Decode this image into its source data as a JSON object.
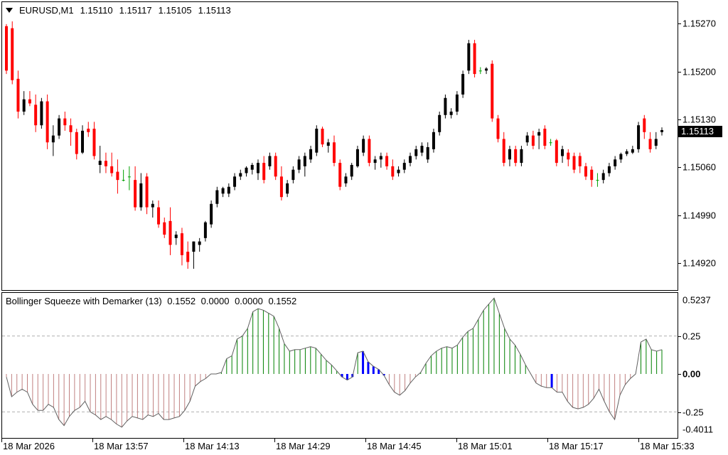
{
  "chart": {
    "symbol_timeframe": "EURUSD,M1",
    "ohlc": [
      "1.15110",
      "1.15117",
      "1.15105",
      "1.15113"
    ],
    "current_price": "1.15113",
    "up_color": "#000000",
    "down_color": "#ff0000",
    "doji_color": "#00a000"
  },
  "indicator": {
    "name": "Bollinger Squeeze with Demarker (13)",
    "values": [
      "0.1552",
      "0.0000",
      "0.0000",
      "0.1552"
    ],
    "positive_color": "#008000",
    "negative_color": "#c08080",
    "squeeze_color": "#0000ff",
    "line_color": "#000000"
  },
  "price_axis_labels": [
    "1.15270",
    "1.15200",
    "1.15130",
    "1.15060",
    "1.14990",
    "1.14920"
  ],
  "indicator_axis_labels": [
    "0.5237",
    "0.25",
    "0.00",
    "-0.25",
    "-0.4011"
  ],
  "time_axis_labels": [
    "18 Mar 2026",
    "18 Mar 13:57",
    "18 Mar 14:13",
    "18 Mar 14:29",
    "18 Mar 14:45",
    "18 Mar 15:01",
    "18 Mar 15:17",
    "18 Mar 15:33"
  ],
  "chart_data": [
    {
      "type": "candlestick",
      "title": "EURUSD,M1",
      "ylim": [
        1.1488,
        1.153
      ],
      "y_ticks": [
        1.1527,
        1.152,
        1.1513,
        1.1506,
        1.1499,
        1.1492
      ],
      "candles": [
        [
          1.15265,
          1.15268,
          1.15195,
          1.152
        ],
        [
          1.15262,
          1.15272,
          1.1518,
          1.15186
        ],
        [
          1.15188,
          1.152,
          1.1513,
          1.1514
        ],
        [
          1.1514,
          1.1517,
          1.15135,
          1.15158
        ],
        [
          1.15158,
          1.1517,
          1.15148,
          1.15152
        ],
        [
          1.1515,
          1.15165,
          1.1511,
          1.1512
        ],
        [
          1.1512,
          1.1516,
          1.15115,
          1.15155
        ],
        [
          1.15155,
          1.15165,
          1.15085,
          1.15095
        ],
        [
          1.15095,
          1.1512,
          1.15075,
          1.15105
        ],
        [
          1.15105,
          1.15135,
          1.151,
          1.1513
        ],
        [
          1.1513,
          1.1514,
          1.15112,
          1.1512
        ],
        [
          1.1512,
          1.1513,
          1.1509,
          1.1511
        ],
        [
          1.1511,
          1.15115,
          1.1507,
          1.15078
        ],
        [
          1.1508,
          1.1512,
          1.15078,
          1.15112
        ],
        [
          1.15115,
          1.15125,
          1.15103,
          1.1511
        ],
        [
          1.15115,
          1.15125,
          1.1507,
          1.15075
        ],
        [
          1.15062,
          1.1509,
          1.1505,
          1.15068
        ],
        [
          1.15068,
          1.1508,
          1.1505,
          1.1506
        ],
        [
          1.1506,
          1.1508,
          1.15045,
          1.1505
        ],
        [
          1.15052,
          1.1507,
          1.1502,
          1.1504
        ],
        [
          1.1504,
          1.15055,
          1.15038,
          1.1504
        ],
        [
          1.15045,
          1.1506,
          1.15025,
          1.15045
        ],
        [
          1.1504,
          1.1506,
          1.14995,
          1.15
        ],
        [
          1.15,
          1.1505,
          1.14995,
          1.15035
        ],
        [
          1.15045,
          1.1505,
          1.1499,
          1.15
        ],
        [
          1.15,
          1.1501,
          1.14985,
          1.15005
        ],
        [
          1.15,
          1.1501,
          1.1497,
          1.14975
        ],
        [
          1.14978,
          1.14985,
          1.14955,
          1.1496
        ],
        [
          1.1498,
          1.15,
          1.1493,
          1.14945
        ],
        [
          1.14955,
          1.14965,
          1.14945,
          1.1496
        ],
        [
          1.14962,
          1.1497,
          1.14915,
          1.1493
        ],
        [
          1.14935,
          1.1495,
          1.1491,
          1.1492
        ],
        [
          1.14935,
          1.1495,
          1.1491,
          1.1495
        ],
        [
          1.14945,
          1.14955,
          1.14935,
          1.1495
        ],
        [
          1.14955,
          1.1498,
          1.1495,
          1.14978
        ],
        [
          1.14975,
          1.1501,
          1.1497,
          1.15005
        ],
        [
          1.15005,
          1.1503,
          1.15,
          1.15025
        ],
        [
          1.1502,
          1.1503,
          1.15015,
          1.15028
        ],
        [
          1.1502,
          1.15035,
          1.15015,
          1.1503
        ],
        [
          1.1503,
          1.1505,
          1.15025,
          1.15045
        ],
        [
          1.15045,
          1.15055,
          1.1504,
          1.1505
        ],
        [
          1.1505,
          1.1506,
          1.15045,
          1.15058
        ],
        [
          1.15055,
          1.15065,
          1.15048,
          1.15062
        ],
        [
          1.1505,
          1.1507,
          1.1504,
          1.15065
        ],
        [
          1.15065,
          1.15075,
          1.15035,
          1.1504
        ],
        [
          1.1506,
          1.1508,
          1.15055,
          1.15075
        ],
        [
          1.15075,
          1.1508,
          1.1504,
          1.15045
        ],
        [
          1.15045,
          1.1506,
          1.1501,
          1.15015
        ],
        [
          1.1502,
          1.1504,
          1.15015,
          1.15035
        ],
        [
          1.1504,
          1.1506,
          1.15035,
          1.15055
        ],
        [
          1.15055,
          1.15075,
          1.1505,
          1.1507
        ],
        [
          1.1506,
          1.1508,
          1.15045,
          1.15075
        ],
        [
          1.1507,
          1.1509,
          1.15065,
          1.15085
        ],
        [
          1.1508,
          1.1512,
          1.15075,
          1.15115
        ],
        [
          1.15115,
          1.15118,
          1.15088,
          1.15092
        ],
        [
          1.1509,
          1.151,
          1.1508,
          1.15095
        ],
        [
          1.15095,
          1.15105,
          1.1506,
          1.15065
        ],
        [
          1.15065,
          1.1507,
          1.15025,
          1.1503
        ],
        [
          1.15035,
          1.1505,
          1.1503,
          1.15045
        ],
        [
          1.15045,
          1.15065,
          1.1504,
          1.15062
        ],
        [
          1.1506,
          1.1509,
          1.15058,
          1.15085
        ],
        [
          1.1508,
          1.15105,
          1.15075,
          1.151
        ],
        [
          1.151,
          1.15105,
          1.1506,
          1.15065
        ],
        [
          1.15065,
          1.15075,
          1.15055,
          1.1507
        ],
        [
          1.1507,
          1.1508,
          1.15058,
          1.15075
        ],
        [
          1.15075,
          1.1508,
          1.15055,
          1.1506
        ],
        [
          1.1506,
          1.1507,
          1.1504,
          1.15045
        ],
        [
          1.1505,
          1.1506,
          1.15045,
          1.15055
        ],
        [
          1.15055,
          1.1507,
          1.1505,
          1.15065
        ],
        [
          1.15065,
          1.1508,
          1.1506,
          1.15075
        ],
        [
          1.15075,
          1.1509,
          1.1507,
          1.15085
        ],
        [
          1.1508,
          1.15095,
          1.15075,
          1.1509
        ],
        [
          1.1507,
          1.15095,
          1.15065,
          1.15088
        ],
        [
          1.15085,
          1.15115,
          1.1508,
          1.1511
        ],
        [
          1.1511,
          1.1514,
          1.15105,
          1.15135
        ],
        [
          1.15135,
          1.15165,
          1.1513,
          1.1516
        ],
        [
          1.15135,
          1.15145,
          1.1513,
          1.1514
        ],
        [
          1.1514,
          1.1517,
          1.15135,
          1.15165
        ],
        [
          1.15165,
          1.152,
          1.1516,
          1.15195
        ],
        [
          1.152,
          1.15245,
          1.15195,
          1.1524
        ],
        [
          1.1524,
          1.15245,
          1.1519,
          1.15195
        ],
        [
          1.152,
          1.15205,
          1.15195,
          1.152
        ],
        [
          1.152,
          1.15205,
          1.15195,
          1.15203
        ],
        [
          1.1521,
          1.15215,
          1.15125,
          1.1513
        ],
        [
          1.1513,
          1.15135,
          1.15095,
          1.151
        ],
        [
          1.151,
          1.1511,
          1.1506,
          1.15065
        ],
        [
          1.1507,
          1.1509,
          1.1506,
          1.15085
        ],
        [
          1.15085,
          1.1509,
          1.1506,
          1.15065
        ],
        [
          1.15065,
          1.1509,
          1.1506,
          1.15085
        ],
        [
          1.15095,
          1.1511,
          1.1509,
          1.15105
        ],
        [
          1.15105,
          1.15112,
          1.15085,
          1.1509
        ],
        [
          1.15105,
          1.15115,
          1.15085,
          1.1511
        ],
        [
          1.15115,
          1.1512,
          1.15085,
          1.1509
        ],
        [
          1.15095,
          1.151,
          1.1509,
          1.15095
        ],
        [
          1.15098,
          1.151,
          1.1506,
          1.15065
        ],
        [
          1.15075,
          1.1509,
          1.15065,
          1.15085
        ],
        [
          1.1508,
          1.15085,
          1.1506,
          1.1507
        ],
        [
          1.15075,
          1.1508,
          1.1505,
          1.15055
        ],
        [
          1.15075,
          1.1508,
          1.1505,
          1.1506
        ],
        [
          1.1506,
          1.15065,
          1.1504,
          1.15045
        ],
        [
          1.15055,
          1.1506,
          1.1503,
          1.1504
        ],
        [
          1.1504,
          1.1505,
          1.1503,
          1.1504
        ],
        [
          1.1504,
          1.15055,
          1.15035,
          1.1505
        ],
        [
          1.1505,
          1.15065,
          1.15045,
          1.1506
        ],
        [
          1.1506,
          1.15075,
          1.15055,
          1.1507
        ],
        [
          1.1507,
          1.1508,
          1.15065,
          1.15078
        ],
        [
          1.15078,
          1.15085,
          1.15075,
          1.15082
        ],
        [
          1.1508,
          1.1509,
          1.15078,
          1.15085
        ],
        [
          1.15085,
          1.15125,
          1.1508,
          1.1512
        ],
        [
          1.1513,
          1.15135,
          1.151,
          1.1511
        ],
        [
          1.151,
          1.1511,
          1.1508,
          1.15085
        ],
        [
          1.1509,
          1.1511,
          1.15085,
          1.151
        ],
        [
          1.1511,
          1.15117,
          1.15105,
          1.15113
        ]
      ]
    },
    {
      "type": "bar",
      "title": "Bollinger Squeeze with Demarker (13)",
      "ylim": [
        -0.4011,
        0.5237
      ],
      "y_ticks": [
        0.25,
        0.0,
        -0.25
      ],
      "series": [
        {
          "values": [
            -0.02,
            -0.15,
            -0.12,
            -0.1,
            -0.12,
            -0.2,
            -0.24,
            -0.24,
            -0.2,
            -0.22,
            -0.3,
            -0.34,
            -0.28,
            -0.24,
            -0.22,
            -0.18,
            -0.25,
            -0.27,
            -0.3,
            -0.28,
            -0.3,
            -0.33,
            -0.35,
            -0.31,
            -0.28,
            -0.29,
            -0.3,
            -0.27,
            -0.28,
            -0.26,
            -0.3,
            -0.3,
            -0.29,
            -0.28,
            -0.24,
            -0.18,
            -0.08,
            -0.05,
            -0.03,
            0.0,
            0.0,
            0.01,
            0.1,
            0.12,
            0.23,
            0.25,
            0.3,
            0.41,
            0.43,
            0.42,
            0.4,
            0.38,
            0.3,
            0.2,
            0.15,
            0.16,
            0.16,
            0.17,
            0.18,
            0.17,
            0.13,
            0.09,
            0.06,
            0.02,
            -0.02,
            -0.04,
            -0.02,
            0.14,
            0.15,
            0.08,
            0.05,
            0.03,
            -0.01,
            -0.07,
            -0.12,
            -0.14,
            -0.11,
            -0.06,
            -0.02,
            0.01,
            0.07,
            0.12,
            0.15,
            0.17,
            0.18,
            0.17,
            0.19,
            0.24,
            0.28,
            0.3,
            0.36,
            0.42,
            0.46,
            0.5,
            0.4,
            0.3,
            0.23,
            0.19,
            0.13,
            0.06,
            0.0,
            -0.06,
            -0.08,
            -0.09,
            -0.09,
            -0.12,
            -0.12,
            -0.18,
            -0.22,
            -0.23,
            -0.22,
            -0.2,
            -0.16,
            -0.1,
            -0.18,
            -0.25,
            -0.3,
            -0.14,
            -0.07,
            -0.03,
            0.0,
            0.21,
            0.23,
            0.16,
            0.15,
            0.16
          ]
        }
      ]
    }
  ]
}
